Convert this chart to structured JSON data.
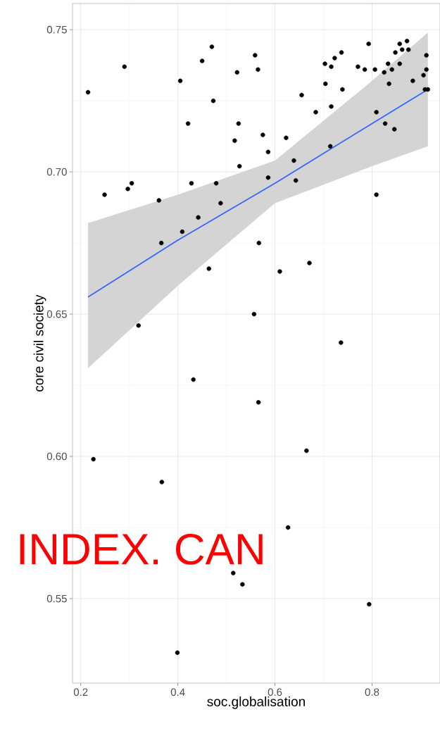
{
  "chart_data": {
    "type": "scatter",
    "xlabel": "soc.globalisation",
    "ylabel": "core civil society",
    "xlim": [
      0.183,
      0.94
    ],
    "ylim": [
      0.5203,
      0.7592
    ],
    "xticks": [
      0.2,
      0.4,
      0.6,
      0.8
    ],
    "yticks": [
      0.55,
      {
        "value": 0.6,
        "label": "0.60"
      },
      0.65,
      {
        "value": 0.7,
        "label": "0.70"
      },
      0.75
    ],
    "grid": true,
    "annotations": [
      "INDEX. CAN"
    ],
    "series": [
      {
        "color": "#000000",
        "marker": "circle",
        "x": [
          0.215,
          0.29,
          0.249,
          0.297,
          0.305,
          0.361,
          0.366,
          0.405,
          0.409,
          0.421,
          0.428,
          0.442,
          0.45,
          0.47,
          0.473,
          0.479,
          0.488,
          0.517,
          0.522,
          0.525,
          0.527,
          0.559,
          0.565,
          0.575,
          0.586,
          0.586,
          0.623,
          0.639,
          0.643,
          0.655,
          0.684,
          0.703,
          0.704,
          0.716,
          0.716,
          0.714,
          0.723,
          0.737,
          0.739,
          0.771,
          0.785,
          0.793,
          0.806,
          0.809,
          0.809,
          0.825,
          0.827,
          0.833,
          0.835,
          0.841,
          0.846,
          0.848,
          0.857,
          0.857,
          0.862,
          0.872,
          0.875,
          0.884,
          0.906,
          0.912,
          0.912,
          0.909,
          0.915,
          0.567,
          0.464,
          0.61,
          0.671,
          0.557,
          0.319,
          0.736,
          0.432,
          0.566,
          0.665,
          0.226,
          0.367,
          0.627,
          0.514,
          0.533,
          0.794,
          0.399
        ],
        "values": [
          0.728,
          0.737,
          0.692,
          0.694,
          0.696,
          0.69,
          0.675,
          0.732,
          0.679,
          0.717,
          0.696,
          0.684,
          0.739,
          0.744,
          0.725,
          0.696,
          0.689,
          0.711,
          0.735,
          0.717,
          0.702,
          0.741,
          0.736,
          0.713,
          0.707,
          0.698,
          0.712,
          0.704,
          0.697,
          0.727,
          0.721,
          0.738,
          0.731,
          0.737,
          0.723,
          0.709,
          0.74,
          0.742,
          0.729,
          0.737,
          0.736,
          0.745,
          0.736,
          0.721,
          0.692,
          0.735,
          0.717,
          0.738,
          0.731,
          0.736,
          0.715,
          0.742,
          0.745,
          0.738,
          0.743,
          0.746,
          0.743,
          0.732,
          0.734,
          0.741,
          0.736,
          0.729,
          0.729,
          0.675,
          0.666,
          0.665,
          0.668,
          0.65,
          0.646,
          0.64,
          0.627,
          0.619,
          0.602,
          0.599,
          0.591,
          0.575,
          0.559,
          0.555,
          0.548,
          0.531
        ]
      },
      {
        "type": "line",
        "color": "#3366ff",
        "marker": "none",
        "x": [
          0.215,
          0.4,
          0.6,
          0.8,
          0.915
        ],
        "values": [
          0.656,
          0.676,
          0.696,
          0.717,
          0.729
        ],
        "lower": [
          0.631,
          0.66,
          0.689,
          0.702,
          0.709
        ],
        "upper": [
          0.682,
          0.692,
          0.704,
          0.732,
          0.749
        ]
      }
    ]
  }
}
